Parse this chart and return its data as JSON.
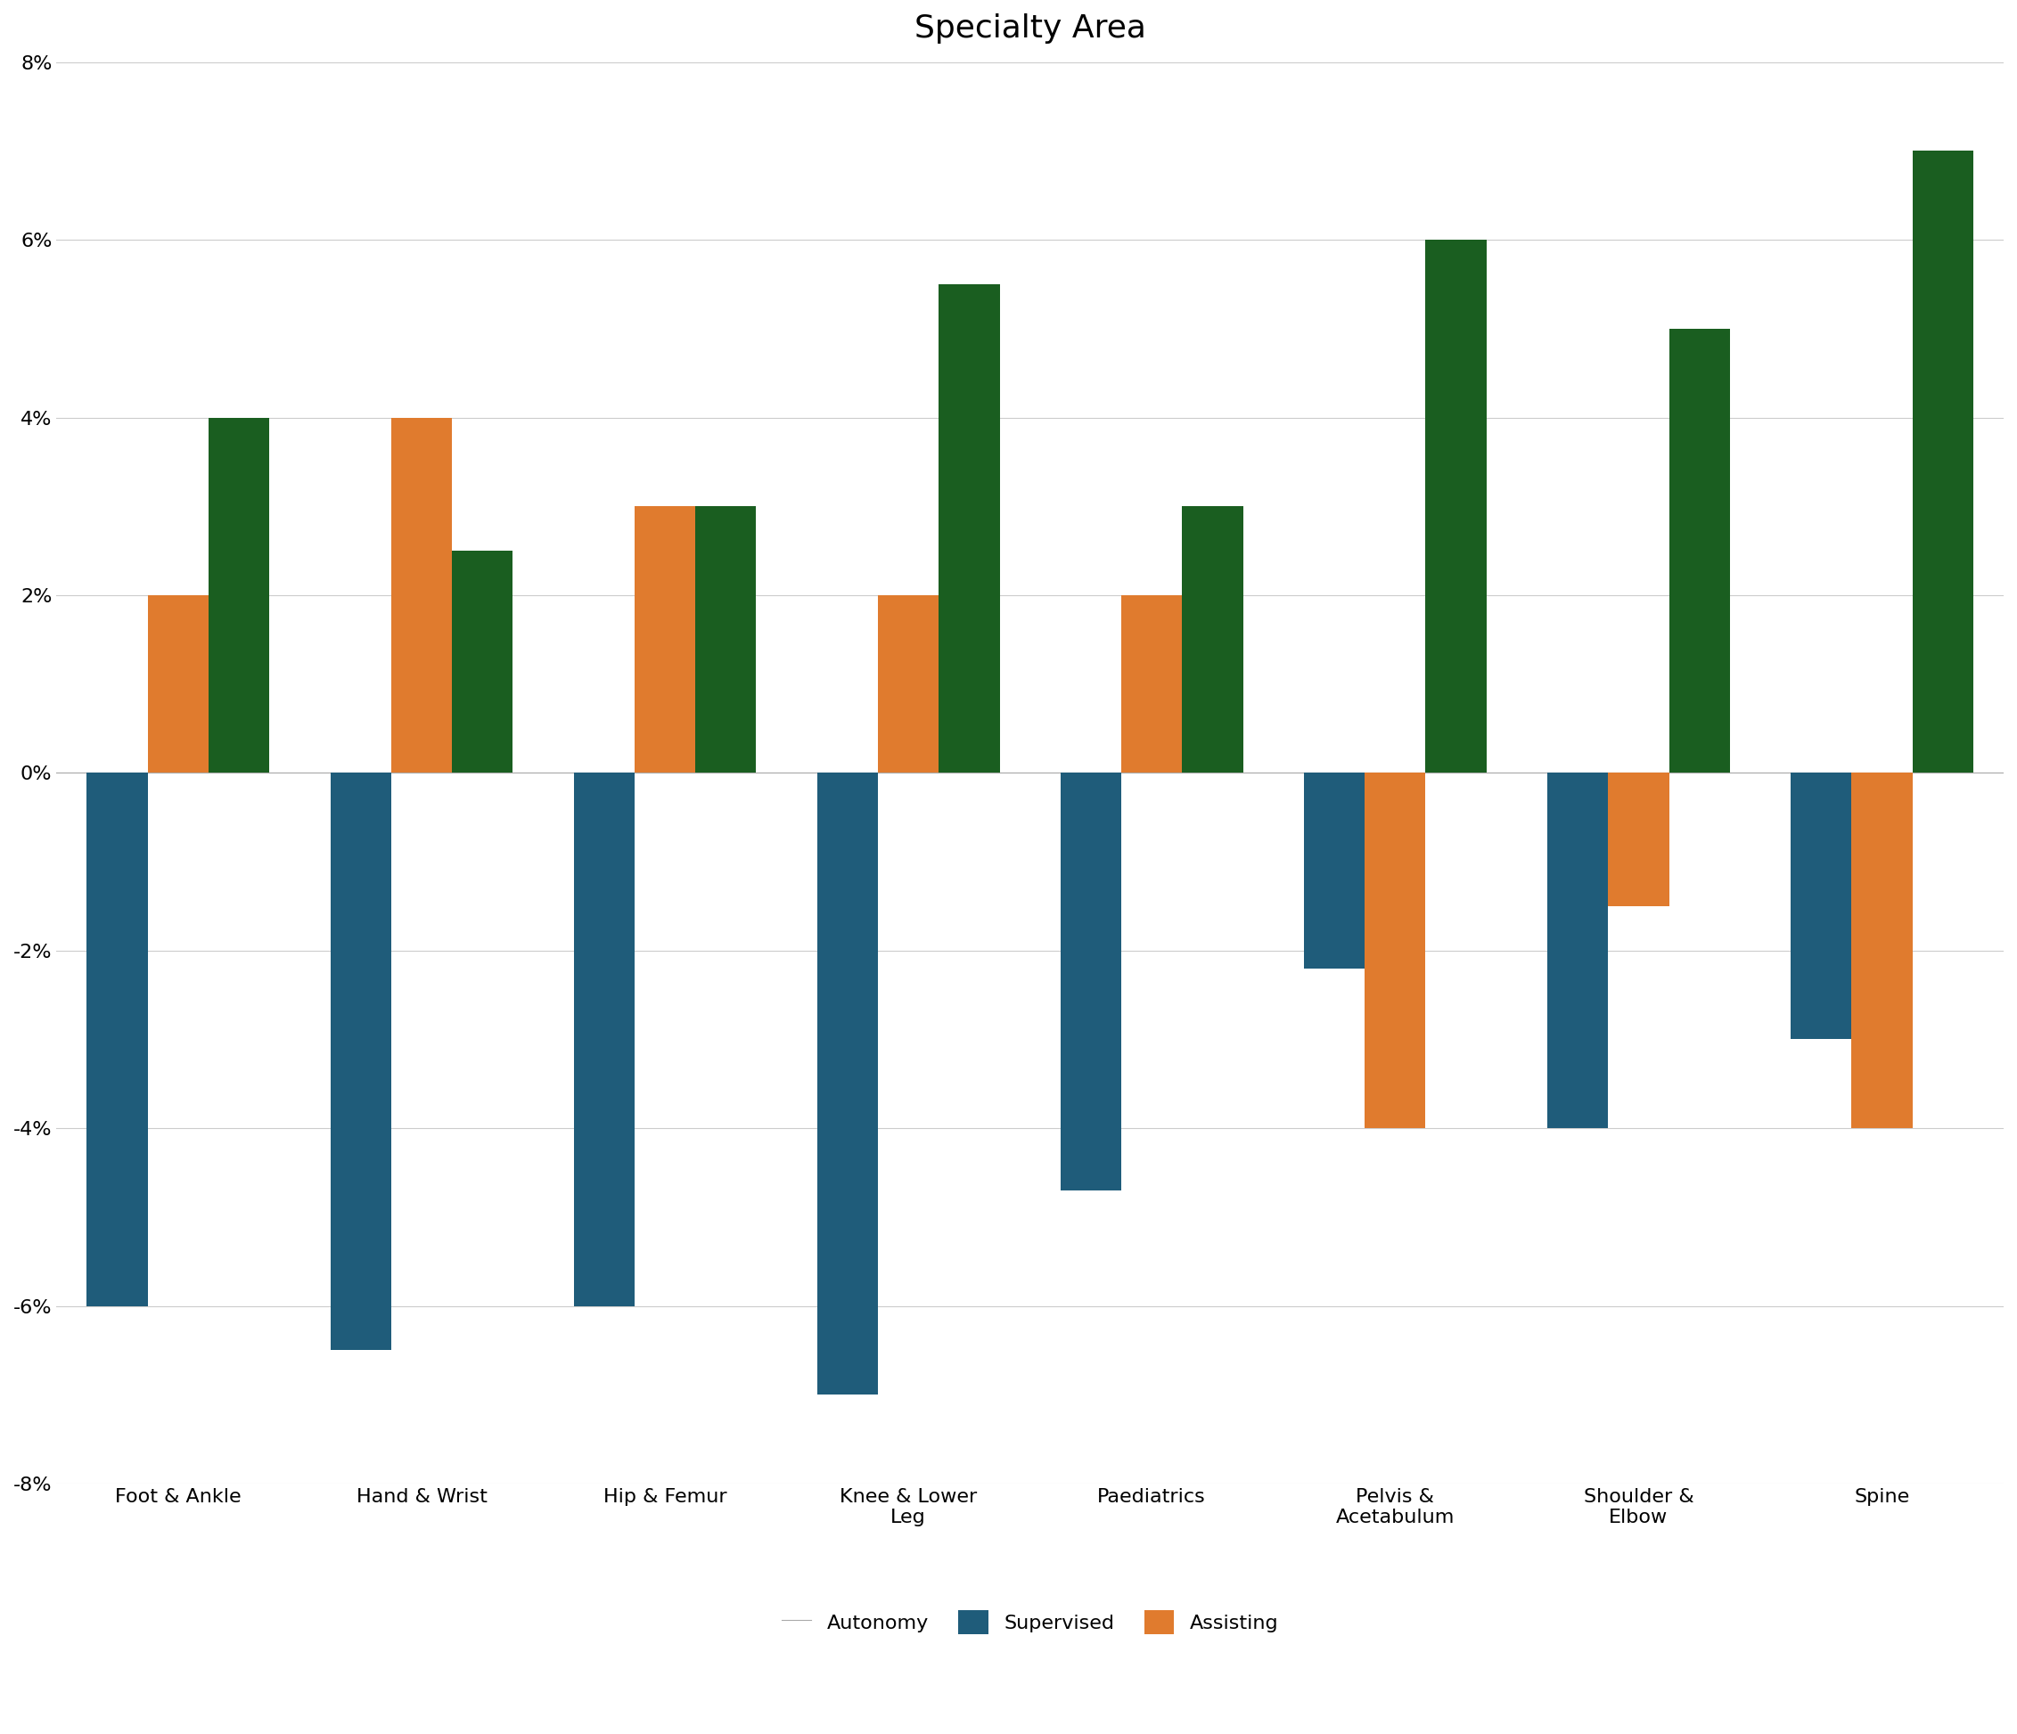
{
  "title": "Specialty Area",
  "categories": [
    "Foot & Ankle",
    "Hand & Wrist",
    "Hip & Femur",
    "Knee & Lower\nLeg",
    "Paediatrics",
    "Pelvis &\nAcetabulum",
    "Shoulder &\nElbow",
    "Spine"
  ],
  "series": {
    "Autonomy": [
      -6.0,
      -6.5,
      -6.0,
      -7.0,
      -4.7,
      -2.2,
      -4.0,
      -3.0
    ],
    "Supervised": [
      2.0,
      4.0,
      3.0,
      2.0,
      2.0,
      -4.0,
      -1.5,
      -4.0
    ],
    "Assisting": [
      4.0,
      2.5,
      3.0,
      5.5,
      3.0,
      6.0,
      5.0,
      7.0
    ]
  },
  "colors": {
    "Autonomy": "#1f5c7a",
    "Supervised": "#e07b2e",
    "Assisting": "#1a5e20"
  },
  "ylim": [
    -8,
    8
  ],
  "yticks": [
    -8,
    -6,
    -4,
    -2,
    0,
    2,
    4,
    6,
    8
  ],
  "background_color": "#ffffff",
  "grid_color": "#cccccc",
  "title_fontsize": 26,
  "tick_fontsize": 16,
  "legend_fontsize": 16,
  "bar_width": 0.25
}
